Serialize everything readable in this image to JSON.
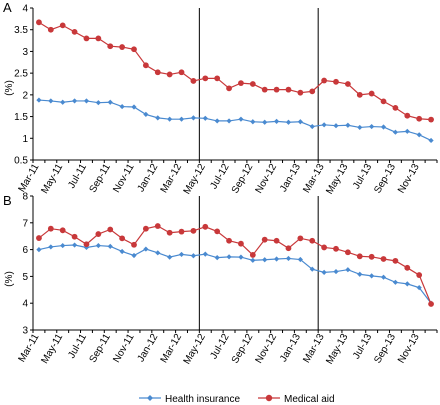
{
  "colors": {
    "health": "#4a8ad0",
    "medical": "#c8383a",
    "axis": "#000000"
  },
  "legend": {
    "health_label": "Health insurance",
    "medical_label": "Medical aid"
  },
  "chart_data": [
    {
      "panel": "A",
      "type": "line",
      "ylabel": "(%)",
      "ylim": [
        0.5,
        4
      ],
      "yticks": [
        0.5,
        1,
        1.5,
        2,
        2.5,
        3,
        3.5,
        4
      ],
      "ytick_labels": [
        "0.5",
        "1",
        "1.5",
        "2",
        "2.5",
        "3",
        "3.5",
        "4"
      ],
      "x": [
        "Mar-11",
        "Apr-11",
        "May-11",
        "Jun-11",
        "Jul-11",
        "Aug-11",
        "Sep-11",
        "Oct-11",
        "Nov-11",
        "Dec-11",
        "Jan-12",
        "Feb-12",
        "Mar-12",
        "Apr-12",
        "May-12",
        "Jun-12",
        "Jul-12",
        "Aug-12",
        "Sep-12",
        "Oct-12",
        "Nov-12",
        "Dec-12",
        "Jan-13",
        "Feb-13",
        "Mar-13",
        "Apr-13",
        "May-13",
        "Jun-13",
        "Jul-13",
        "Aug-13",
        "Sep-13",
        "Oct-13",
        "Nov-13",
        "Dec-13"
      ],
      "xtick_labels": [
        "Mar-11",
        "May-11",
        "Jul-11",
        "Sep-11",
        "Nov-11",
        "Jan-12",
        "Mar-12",
        "May-12",
        "Jul-12",
        "Sep-12",
        "Nov-12",
        "Jan-13",
        "Mar-13",
        "May-13",
        "Jul-13",
        "Sep-13",
        "Nov-13"
      ],
      "vlines_after": [
        "Apr-12",
        "Feb-13"
      ],
      "series": [
        {
          "name": "Health insurance",
          "values": [
            1.88,
            1.86,
            1.83,
            1.86,
            1.86,
            1.82,
            1.83,
            1.73,
            1.72,
            1.55,
            1.47,
            1.44,
            1.44,
            1.47,
            1.46,
            1.4,
            1.4,
            1.44,
            1.38,
            1.37,
            1.39,
            1.37,
            1.38,
            1.27,
            1.31,
            1.29,
            1.3,
            1.25,
            1.27,
            1.26,
            1.14,
            1.16,
            1.08,
            0.95
          ]
        },
        {
          "name": "Medical aid",
          "values": [
            3.67,
            3.5,
            3.6,
            3.45,
            3.3,
            3.3,
            3.12,
            3.1,
            3.05,
            2.68,
            2.52,
            2.47,
            2.52,
            2.32,
            2.38,
            2.38,
            2.15,
            2.27,
            2.25,
            2.12,
            2.12,
            2.12,
            2.05,
            2.08,
            2.33,
            2.3,
            2.25,
            2.0,
            2.03,
            1.85,
            1.7,
            1.52,
            1.45,
            1.43
          ]
        }
      ]
    },
    {
      "panel": "B",
      "type": "line",
      "ylabel": "(%)",
      "ylim": [
        3,
        8
      ],
      "yticks": [
        3,
        4,
        5,
        6,
        7,
        8
      ],
      "ytick_labels": [
        "3",
        "4",
        "5",
        "6",
        "7",
        "8"
      ],
      "x": [
        "Mar-11",
        "Apr-11",
        "May-11",
        "Jun-11",
        "Jul-11",
        "Aug-11",
        "Sep-11",
        "Oct-11",
        "Nov-11",
        "Dec-11",
        "Jan-12",
        "Feb-12",
        "Mar-12",
        "Apr-12",
        "May-12",
        "Jun-12",
        "Jul-12",
        "Aug-12",
        "Sep-12",
        "Oct-12",
        "Nov-12",
        "Dec-12",
        "Jan-13",
        "Feb-13",
        "Mar-13",
        "Apr-13",
        "May-13",
        "Jun-13",
        "Jul-13",
        "Aug-13",
        "Sep-13",
        "Oct-13",
        "Nov-13",
        "Dec-13"
      ],
      "xtick_labels": [
        "Mar-11",
        "May-11",
        "Jul-11",
        "Sep-11",
        "Nov-11",
        "Jan-12",
        "Mar-12",
        "May-12",
        "Jul-12",
        "Sep-12",
        "Nov-12",
        "Jan-13",
        "Mar-13",
        "May-13",
        "Jul-13",
        "Sep-13",
        "Nov-13"
      ],
      "vlines_after": [
        "Apr-12",
        "Feb-13"
      ],
      "series": [
        {
          "name": "Health insurance",
          "values": [
            6.0,
            6.1,
            6.15,
            6.17,
            6.08,
            6.15,
            6.12,
            5.93,
            5.78,
            6.02,
            5.88,
            5.72,
            5.82,
            5.77,
            5.83,
            5.7,
            5.73,
            5.72,
            5.6,
            5.62,
            5.65,
            5.67,
            5.63,
            5.27,
            5.15,
            5.18,
            5.25,
            5.08,
            5.02,
            4.97,
            4.78,
            4.72,
            4.58,
            4.0
          ]
        },
        {
          "name": "Medical aid",
          "values": [
            6.43,
            6.78,
            6.72,
            6.48,
            6.2,
            6.58,
            6.75,
            6.42,
            6.18,
            6.78,
            6.88,
            6.63,
            6.67,
            6.7,
            6.85,
            6.68,
            6.33,
            6.22,
            5.8,
            6.37,
            6.33,
            6.05,
            6.42,
            6.33,
            6.08,
            6.03,
            5.9,
            5.75,
            5.73,
            5.65,
            5.58,
            5.32,
            5.05,
            3.97
          ]
        }
      ]
    }
  ]
}
